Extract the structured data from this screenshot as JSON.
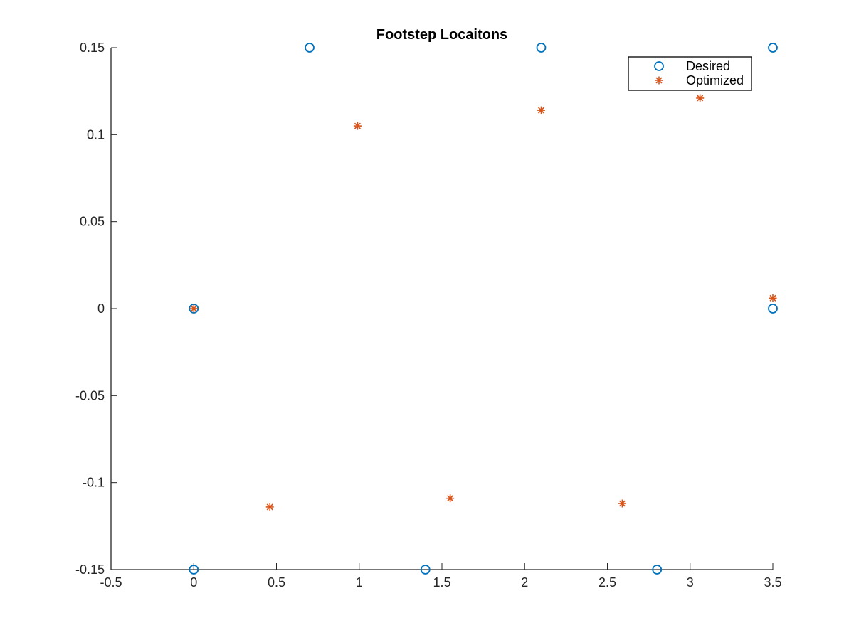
{
  "chart_data": {
    "type": "scatter",
    "title": "Footstep Locaitons",
    "xlabel": "",
    "ylabel": "",
    "xlim": [
      -0.5,
      3.5
    ],
    "ylim": [
      -0.15,
      0.15
    ],
    "x_ticks": [
      -0.5,
      0,
      0.5,
      1,
      1.5,
      2,
      2.5,
      3,
      3.5
    ],
    "x_tick_labels": [
      "-0.5",
      "0",
      "0.5",
      "1",
      "1.5",
      "2",
      "2.5",
      "3",
      "3.5"
    ],
    "y_ticks": [
      -0.15,
      -0.1,
      -0.05,
      0,
      0.05,
      0.1,
      0.15
    ],
    "y_tick_labels": [
      "-0.15",
      "-0.1",
      "-0.05",
      "0",
      "0.05",
      "0.1",
      "0.15"
    ],
    "grid": false,
    "legend_position": "top-right",
    "series": [
      {
        "name": "Desired",
        "marker": "circle",
        "color": "#0072BD",
        "x": [
          0,
          0,
          0.7,
          1.4,
          2.1,
          2.8,
          3.5,
          3.5
        ],
        "y": [
          0,
          -0.15,
          0.15,
          -0.15,
          0.15,
          -0.15,
          0.15,
          0
        ]
      },
      {
        "name": "Optimized",
        "marker": "asterisk",
        "color": "#D95319",
        "x": [
          0,
          0.46,
          0.99,
          1.55,
          2.1,
          2.59,
          3.06,
          3.5
        ],
        "y": [
          0,
          -0.114,
          0.105,
          -0.109,
          0.114,
          -0.112,
          0.121,
          0.006
        ]
      }
    ]
  }
}
